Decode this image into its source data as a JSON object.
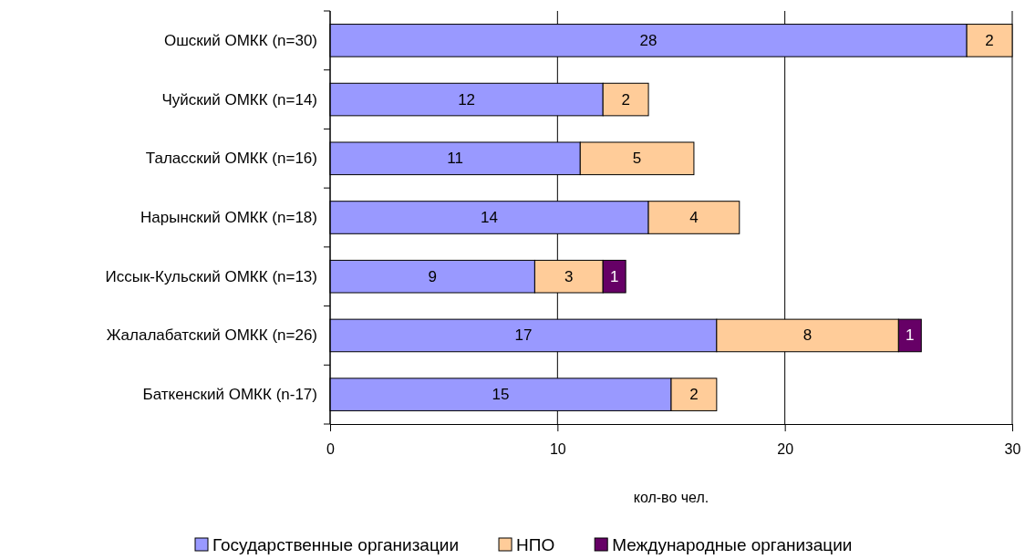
{
  "chart_data": {
    "type": "bar",
    "orientation": "horizontal",
    "stacked": true,
    "xlabel": "кол-во чел.",
    "categories": [
      "Ошский ОМКК (n=30)",
      "Чуйский ОМКК (n=14)",
      "Таласский ОМКК (n=16)",
      "Нарынский ОМКК (n=18)",
      "Иссык-Кульский ОМКК (n=13)",
      "Жалалабатский ОМКК (n=26)",
      "Баткенский ОМКК (n-17)"
    ],
    "series": [
      {
        "name": "Государственные организации",
        "color": "#9999ff",
        "values": [
          28,
          12,
          11,
          14,
          9,
          17,
          15
        ]
      },
      {
        "name": "НПО",
        "color": "#ffcc99",
        "values": [
          2,
          2,
          5,
          4,
          3,
          8,
          2
        ]
      },
      {
        "name": "Международные организации",
        "color": "#660066",
        "values": [
          null,
          null,
          null,
          null,
          1,
          1,
          null
        ]
      }
    ],
    "xlim": [
      0,
      30
    ],
    "xticks": [
      0,
      10,
      20,
      30
    ],
    "grid": "x",
    "legend": "bottom",
    "data_labels": true
  }
}
